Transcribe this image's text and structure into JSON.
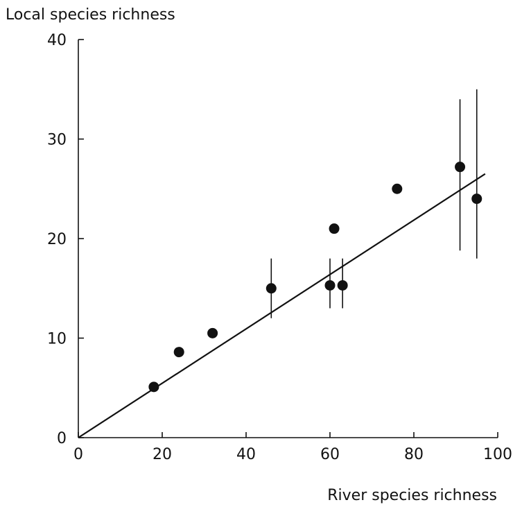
{
  "chart_data": {
    "type": "scatter",
    "title": "",
    "xlabel": "River species richness",
    "ylabel": "Local species richness",
    "xlim": [
      0,
      100
    ],
    "ylim": [
      0,
      40
    ],
    "x_ticks": [
      0,
      20,
      40,
      60,
      80,
      100
    ],
    "x_tick_labels": [
      "0",
      "20",
      "40",
      "60",
      "80",
      "100"
    ],
    "y_ticks": [
      0,
      10,
      20,
      30,
      40
    ],
    "y_tick_labels": [
      "0",
      "10",
      "20",
      "30",
      "40"
    ],
    "grid": false,
    "legend": "none",
    "points": [
      {
        "x": 18,
        "y": 5.1
      },
      {
        "x": 24,
        "y": 8.6
      },
      {
        "x": 32,
        "y": 10.5
      },
      {
        "x": 46,
        "y": 15.0,
        "y_low": 12.0,
        "y_high": 18.0
      },
      {
        "x": 60,
        "y": 15.3,
        "y_low": 13.0,
        "y_high": 18.0
      },
      {
        "x": 61,
        "y": 21.0
      },
      {
        "x": 63,
        "y": 15.3,
        "y_low": 13.0,
        "y_high": 18.0
      },
      {
        "x": 76,
        "y": 25.0
      },
      {
        "x": 91,
        "y": 27.2,
        "y_low": 18.8,
        "y_high": 34.0
      },
      {
        "x": 95,
        "y": 24.0,
        "y_low": 18.0,
        "y_high": 35.0
      }
    ],
    "fit_line": {
      "x": [
        0,
        97
      ],
      "y": [
        0,
        26.5
      ]
    },
    "colors": {
      "ink": "#111111",
      "background": "#ffffff"
    }
  }
}
